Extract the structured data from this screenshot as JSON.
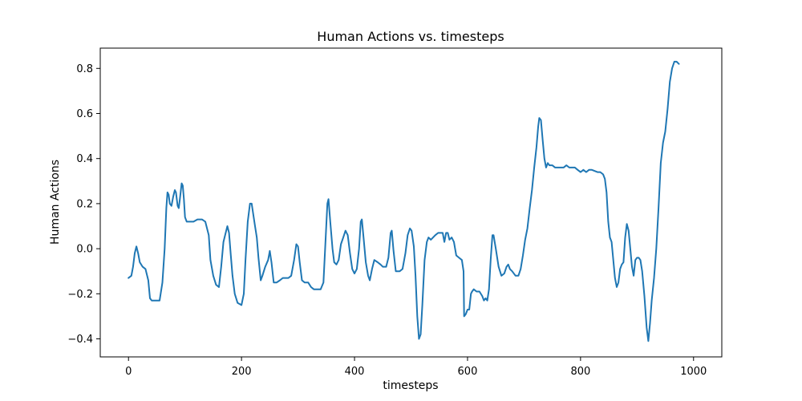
{
  "chart_data": {
    "type": "line",
    "title": "Human Actions vs. timesteps",
    "xlabel": "timesteps",
    "ylabel": "Human Actions",
    "xlim": [
      -50,
      1050
    ],
    "ylim": [
      -0.48,
      0.89
    ],
    "xticks": [
      0,
      200,
      400,
      600,
      800,
      1000
    ],
    "yticks": [
      -0.4,
      -0.2,
      0.0,
      0.2,
      0.4,
      0.6,
      0.8
    ],
    "xtick_labels": [
      "0",
      "200",
      "400",
      "600",
      "800",
      "1000"
    ],
    "ytick_labels": [
      "−0.4",
      "−0.2",
      "0.0",
      "0.2",
      "0.4",
      "0.6",
      "0.8"
    ],
    "grid": false,
    "legend": null,
    "series": [
      {
        "color": "#1f77b4",
        "points": [
          [
            0,
            -0.13
          ],
          [
            5,
            -0.12
          ],
          [
            8,
            -0.08
          ],
          [
            11,
            -0.02
          ],
          [
            14,
            0.01
          ],
          [
            17,
            -0.02
          ],
          [
            20,
            -0.06
          ],
          [
            25,
            -0.08
          ],
          [
            30,
            -0.09
          ],
          [
            35,
            -0.14
          ],
          [
            38,
            -0.22
          ],
          [
            41,
            -0.23
          ],
          [
            45,
            -0.23
          ],
          [
            55,
            -0.23
          ],
          [
            60,
            -0.15
          ],
          [
            64,
            0.0
          ],
          [
            67,
            0.18
          ],
          [
            69,
            0.25
          ],
          [
            71,
            0.24
          ],
          [
            73,
            0.2
          ],
          [
            76,
            0.19
          ],
          [
            79,
            0.23
          ],
          [
            82,
            0.26
          ],
          [
            84,
            0.25
          ],
          [
            87,
            0.19
          ],
          [
            89,
            0.18
          ],
          [
            91,
            0.22
          ],
          [
            94,
            0.29
          ],
          [
            96,
            0.28
          ],
          [
            98,
            0.22
          ],
          [
            100,
            0.14
          ],
          [
            103,
            0.12
          ],
          [
            108,
            0.12
          ],
          [
            115,
            0.12
          ],
          [
            122,
            0.13
          ],
          [
            130,
            0.13
          ],
          [
            136,
            0.12
          ],
          [
            142,
            0.06
          ],
          [
            145,
            -0.05
          ],
          [
            150,
            -0.12
          ],
          [
            155,
            -0.16
          ],
          [
            160,
            -0.17
          ],
          [
            164,
            -0.08
          ],
          [
            168,
            0.03
          ],
          [
            172,
            0.07
          ],
          [
            175,
            0.1
          ],
          [
            178,
            0.07
          ],
          [
            181,
            -0.03
          ],
          [
            184,
            -0.12
          ],
          [
            188,
            -0.2
          ],
          [
            193,
            -0.24
          ],
          [
            200,
            -0.25
          ],
          [
            204,
            -0.2
          ],
          [
            207,
            -0.05
          ],
          [
            211,
            0.12
          ],
          [
            215,
            0.2
          ],
          [
            218,
            0.2
          ],
          [
            221,
            0.15
          ],
          [
            224,
            0.1
          ],
          [
            227,
            0.05
          ],
          [
            230,
            -0.04
          ],
          [
            234,
            -0.14
          ],
          [
            237,
            -0.12
          ],
          [
            242,
            -0.08
          ],
          [
            247,
            -0.05
          ],
          [
            250,
            -0.01
          ],
          [
            253,
            -0.06
          ],
          [
            257,
            -0.15
          ],
          [
            262,
            -0.15
          ],
          [
            268,
            -0.14
          ],
          [
            273,
            -0.13
          ],
          [
            278,
            -0.13
          ],
          [
            283,
            -0.13
          ],
          [
            288,
            -0.12
          ],
          [
            293,
            -0.05
          ],
          [
            297,
            0.02
          ],
          [
            300,
            0.01
          ],
          [
            303,
            -0.06
          ],
          [
            307,
            -0.14
          ],
          [
            312,
            -0.15
          ],
          [
            318,
            -0.15
          ],
          [
            323,
            -0.17
          ],
          [
            328,
            -0.18
          ],
          [
            335,
            -0.18
          ],
          [
            340,
            -0.18
          ],
          [
            345,
            -0.15
          ],
          [
            349,
            0.05
          ],
          [
            352,
            0.2
          ],
          [
            354,
            0.22
          ],
          [
            357,
            0.12
          ],
          [
            361,
            0.0
          ],
          [
            364,
            -0.06
          ],
          [
            368,
            -0.07
          ],
          [
            372,
            -0.05
          ],
          [
            376,
            0.02
          ],
          [
            380,
            0.05
          ],
          [
            384,
            0.08
          ],
          [
            388,
            0.06
          ],
          [
            392,
            -0.02
          ],
          [
            396,
            -0.09
          ],
          [
            400,
            -0.11
          ],
          [
            404,
            -0.09
          ],
          [
            408,
            0.0
          ],
          [
            411,
            0.12
          ],
          [
            413,
            0.13
          ],
          [
            416,
            0.05
          ],
          [
            420,
            -0.06
          ],
          [
            424,
            -0.12
          ],
          [
            427,
            -0.14
          ],
          [
            431,
            -0.09
          ],
          [
            435,
            -0.05
          ],
          [
            441,
            -0.06
          ],
          [
            446,
            -0.07
          ],
          [
            450,
            -0.08
          ],
          [
            456,
            -0.08
          ],
          [
            460,
            -0.04
          ],
          [
            464,
            0.07
          ],
          [
            466,
            0.08
          ],
          [
            469,
            -0.01
          ],
          [
            473,
            -0.1
          ],
          [
            480,
            -0.1
          ],
          [
            485,
            -0.09
          ],
          [
            490,
            -0.02
          ],
          [
            494,
            0.06
          ],
          [
            498,
            0.09
          ],
          [
            501,
            0.08
          ],
          [
            505,
            0.01
          ],
          [
            508,
            -0.12
          ],
          [
            511,
            -0.3
          ],
          [
            514,
            -0.4
          ],
          [
            517,
            -0.38
          ],
          [
            520,
            -0.25
          ],
          [
            524,
            -0.05
          ],
          [
            528,
            0.03
          ],
          [
            531,
            0.05
          ],
          [
            535,
            0.04
          ],
          [
            539,
            0.05
          ],
          [
            543,
            0.06
          ],
          [
            548,
            0.07
          ],
          [
            552,
            0.07
          ],
          [
            556,
            0.07
          ],
          [
            559,
            0.03
          ],
          [
            562,
            0.07
          ],
          [
            565,
            0.07
          ],
          [
            568,
            0.04
          ],
          [
            572,
            0.05
          ],
          [
            576,
            0.03
          ],
          [
            580,
            -0.03
          ],
          [
            585,
            -0.04
          ],
          [
            590,
            -0.05
          ],
          [
            593,
            -0.1
          ],
          [
            594,
            -0.3
          ],
          [
            597,
            -0.29
          ],
          [
            600,
            -0.27
          ],
          [
            603,
            -0.27
          ],
          [
            606,
            -0.2
          ],
          [
            608,
            -0.19
          ],
          [
            611,
            -0.18
          ],
          [
            616,
            -0.19
          ],
          [
            621,
            -0.19
          ],
          [
            626,
            -0.21
          ],
          [
            629,
            -0.23
          ],
          [
            632,
            -0.22
          ],
          [
            635,
            -0.23
          ],
          [
            638,
            -0.18
          ],
          [
            641,
            -0.05
          ],
          [
            644,
            0.06
          ],
          [
            646,
            0.06
          ],
          [
            650,
            0.0
          ],
          [
            655,
            -0.08
          ],
          [
            660,
            -0.12
          ],
          [
            665,
            -0.11
          ],
          [
            669,
            -0.08
          ],
          [
            672,
            -0.07
          ],
          [
            675,
            -0.09
          ],
          [
            679,
            -0.1
          ],
          [
            685,
            -0.12
          ],
          [
            690,
            -0.12
          ],
          [
            694,
            -0.09
          ],
          [
            698,
            -0.03
          ],
          [
            702,
            0.04
          ],
          [
            706,
            0.09
          ],
          [
            710,
            0.18
          ],
          [
            714,
            0.26
          ],
          [
            718,
            0.36
          ],
          [
            722,
            0.45
          ],
          [
            725,
            0.54
          ],
          [
            727,
            0.58
          ],
          [
            730,
            0.57
          ],
          [
            733,
            0.48
          ],
          [
            736,
            0.4
          ],
          [
            739,
            0.36
          ],
          [
            742,
            0.38
          ],
          [
            745,
            0.37
          ],
          [
            750,
            0.37
          ],
          [
            755,
            0.36
          ],
          [
            760,
            0.36
          ],
          [
            765,
            0.36
          ],
          [
            770,
            0.36
          ],
          [
            775,
            0.37
          ],
          [
            780,
            0.36
          ],
          [
            785,
            0.36
          ],
          [
            790,
            0.36
          ],
          [
            795,
            0.35
          ],
          [
            800,
            0.34
          ],
          [
            805,
            0.35
          ],
          [
            810,
            0.34
          ],
          [
            815,
            0.35
          ],
          [
            820,
            0.35
          ],
          [
            830,
            0.34
          ],
          [
            835,
            0.34
          ],
          [
            840,
            0.33
          ],
          [
            843,
            0.31
          ],
          [
            846,
            0.25
          ],
          [
            849,
            0.12
          ],
          [
            852,
            0.05
          ],
          [
            855,
            0.03
          ],
          [
            858,
            -0.05
          ],
          [
            861,
            -0.13
          ],
          [
            864,
            -0.17
          ],
          [
            867,
            -0.15
          ],
          [
            870,
            -0.09
          ],
          [
            873,
            -0.07
          ],
          [
            876,
            -0.06
          ],
          [
            879,
            0.05
          ],
          [
            882,
            0.11
          ],
          [
            885,
            0.08
          ],
          [
            888,
            0.0
          ],
          [
            891,
            -0.08
          ],
          [
            894,
            -0.12
          ],
          [
            897,
            -0.05
          ],
          [
            900,
            -0.04
          ],
          [
            903,
            -0.04
          ],
          [
            906,
            -0.05
          ],
          [
            909,
            -0.1
          ],
          [
            913,
            -0.21
          ],
          [
            917,
            -0.35
          ],
          [
            920,
            -0.41
          ],
          [
            923,
            -0.33
          ],
          [
            926,
            -0.23
          ],
          [
            930,
            -0.13
          ],
          [
            934,
            0.0
          ],
          [
            938,
            0.18
          ],
          [
            942,
            0.38
          ],
          [
            946,
            0.47
          ],
          [
            950,
            0.52
          ],
          [
            954,
            0.62
          ],
          [
            958,
            0.74
          ],
          [
            962,
            0.8
          ],
          [
            966,
            0.83
          ],
          [
            970,
            0.83
          ],
          [
            974,
            0.82
          ]
        ]
      }
    ]
  }
}
